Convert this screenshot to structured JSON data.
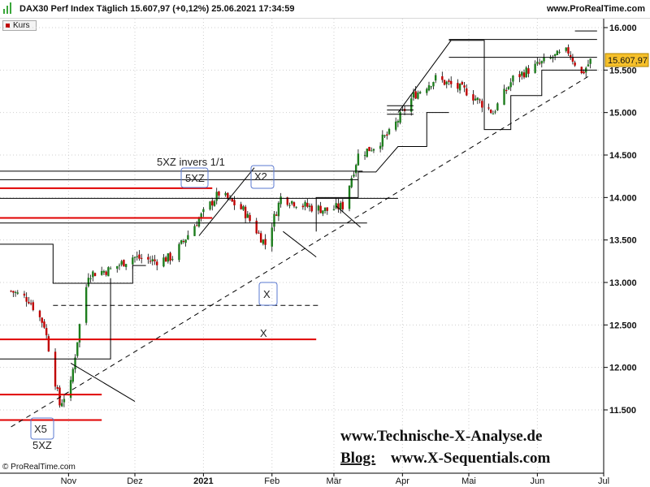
{
  "header": {
    "title": "DAX30 Perf Index Täglich 15.607,97 (+0,12%) 25.06.2021 17:34:59",
    "brand": "www.ProRealTime.com"
  },
  "legend": {
    "series_label": "Kurs",
    "series_color": "#c00000"
  },
  "chart_data": {
    "type": "candlestick",
    "instrument": "DAX30 Perf Index",
    "timeframe": "Täglich",
    "last_price": "15.607,97",
    "change": "+0,12%",
    "timestamp": "25.06.2021 17:34:59",
    "x_tick_labels": [
      "Nov",
      "Dez",
      "2021",
      "Feb",
      "Mär",
      "Apr",
      "Mai",
      "Jun",
      "Jul"
    ],
    "y_tick_labels": [
      "11.500",
      "12.000",
      "12.500",
      "13.000",
      "13.500",
      "14.000",
      "14.500",
      "15.000",
      "15.500",
      "16.000"
    ],
    "y_ticks": [
      11500,
      12000,
      12500,
      13000,
      13500,
      14000,
      14500,
      15000,
      15500,
      16000
    ],
    "ylim": [
      11000,
      16200
    ],
    "date_range": [
      "2020-10-01",
      "2021-07-01"
    ],
    "grid": true,
    "candle_colors": {
      "up": "#1d7d1d",
      "down": "#c00000",
      "wick": "#222222"
    },
    "price_path": [
      [
        "2020-10-06",
        12900
      ],
      [
        "2020-10-14",
        12800
      ],
      [
        "2020-10-21",
        12500
      ],
      [
        "2020-10-28",
        11560
      ],
      [
        "2020-11-02",
        11800
      ],
      [
        "2020-11-06",
        12500
      ],
      [
        "2020-11-10",
        13100
      ],
      [
        "2020-11-20",
        13150
      ],
      [
        "2020-11-30",
        13300
      ],
      [
        "2020-12-10",
        13250
      ],
      [
        "2020-12-18",
        13300
      ],
      [
        "2020-12-30",
        13750
      ],
      [
        "2021-01-08",
        14050
      ],
      [
        "2021-01-19",
        13850
      ],
      [
        "2021-01-29",
        13450
      ],
      [
        "2021-02-05",
        14000
      ],
      [
        "2021-02-16",
        13900
      ],
      [
        "2021-02-26",
        13850
      ],
      [
        "2021-03-05",
        13900
      ],
      [
        "2021-03-12",
        14500
      ],
      [
        "2021-03-19",
        14600
      ],
      [
        "2021-03-26",
        14750
      ],
      [
        "2021-04-06",
        15200
      ],
      [
        "2021-04-16",
        15400
      ],
      [
        "2021-04-30",
        15250
      ],
      [
        "2021-05-12",
        15000
      ],
      [
        "2021-05-21",
        15400
      ],
      [
        "2021-05-28",
        15500
      ],
      [
        "2021-06-08",
        15650
      ],
      [
        "2021-06-15",
        15720
      ],
      [
        "2021-06-21",
        15450
      ],
      [
        "2021-06-25",
        15608
      ]
    ]
  },
  "annotations": {
    "label_5xz_invers": "5XZ invers 1/1",
    "label_5xz_top": "5XZ",
    "label_x2": "X2",
    "label_x_boxed": "X",
    "label_x_plain": "X",
    "label_x5": "X5",
    "label_5xz_bottom": "5XZ",
    "website": "www.Technische-X-Analyse.de",
    "blog_prefix": "Blog:",
    "blog_url": "www.X-Sequentials.com",
    "credit": "© ProRealTime.com",
    "price_tag": "15.607,97"
  },
  "colors": {
    "support_red": "#e00000",
    "frame_line": "#000000",
    "grid": "#cfcfcf",
    "price_tag_bg": "#f6c02a",
    "box_stroke": "#5a78d0"
  }
}
